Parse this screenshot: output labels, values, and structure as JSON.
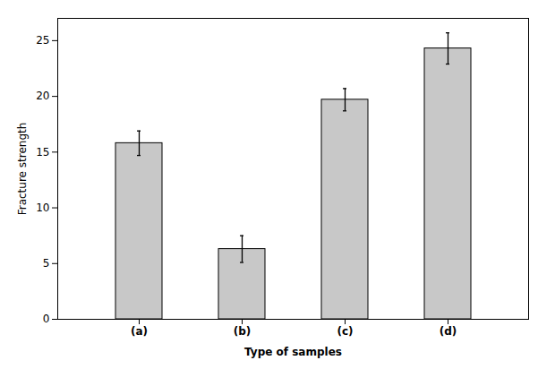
{
  "chart_data": {
    "type": "bar",
    "categories": [
      "(a)",
      "(b)",
      "(c)",
      "(d)"
    ],
    "values": [
      15.8,
      6.3,
      19.7,
      24.3
    ],
    "errors": [
      1.1,
      1.2,
      1.0,
      1.4
    ],
    "color": "#c8c8c8",
    "xlabel": "Type of samples",
    "ylabel": "Fracture strength",
    "ylim": [
      0,
      27
    ],
    "yticks": [
      0,
      5,
      10,
      15,
      20,
      25
    ],
    "grid": false
  }
}
